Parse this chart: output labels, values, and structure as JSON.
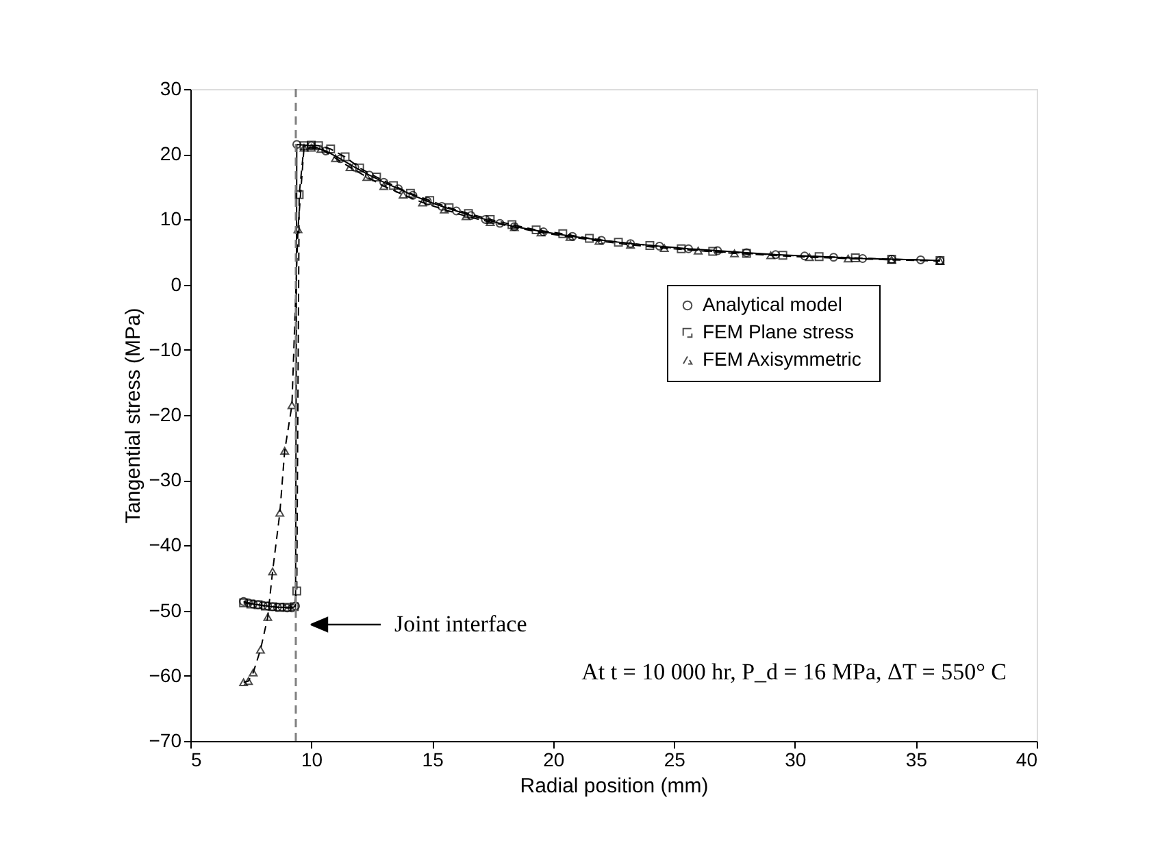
{
  "chart_data": {
    "type": "line",
    "xlabel": "Radial position (mm)",
    "ylabel": "Tangential stress (MPa)",
    "xlim": [
      5,
      40
    ],
    "xticks": [
      5,
      10,
      15,
      20,
      25,
      30,
      35,
      40
    ],
    "ylim": [
      -70,
      30
    ],
    "yticks": [
      -70,
      -60,
      -50,
      -40,
      -30,
      -20,
      -10,
      0,
      10,
      20,
      30
    ],
    "grid": false,
    "legend": "right",
    "series": [
      {
        "name": "Analytical model",
        "color": "#000000",
        "marker": "circle",
        "line_style": "solid",
        "x": [
          7.2,
          7.4,
          7.6,
          7.8,
          8.0,
          8.2,
          8.4,
          8.6,
          8.8,
          9.0,
          9.2,
          9.35,
          9.4,
          10.0,
          10.6,
          11.2,
          11.8,
          12.4,
          13.0,
          13.6,
          14.2,
          14.8,
          15.4,
          16.0,
          16.6,
          17.2,
          17.8,
          18.4,
          19.6,
          20.8,
          22.0,
          23.2,
          24.4,
          25.6,
          26.8,
          28.0,
          29.2,
          30.4,
          31.6,
          32.8,
          34.0,
          35.2,
          36.0
        ],
        "values": [
          -48.6,
          -48.8,
          -49.0,
          -49.1,
          -49.2,
          -49.3,
          -49.4,
          -49.5,
          -49.5,
          -49.6,
          -49.6,
          -49.3,
          21.5,
          21.3,
          20.5,
          19.3,
          18.0,
          16.8,
          15.7,
          14.7,
          13.7,
          12.8,
          12.0,
          11.3,
          10.6,
          10.0,
          9.4,
          8.9,
          8.1,
          7.4,
          6.8,
          6.3,
          5.9,
          5.5,
          5.2,
          4.9,
          4.6,
          4.4,
          4.2,
          4.0,
          3.9,
          3.8,
          3.7
        ]
      },
      {
        "name": "FEM  Plane stress",
        "color": "#000000",
        "marker": "square",
        "line_style": "dashed",
        "x": [
          7.2,
          7.5,
          7.8,
          8.1,
          8.4,
          8.7,
          9.0,
          9.3,
          9.4,
          9.5,
          9.7,
          10.0,
          10.3,
          10.8,
          11.4,
          12.0,
          12.7,
          13.4,
          14.1,
          14.9,
          15.7,
          16.5,
          17.4,
          18.3,
          19.3,
          20.4,
          21.5,
          22.7,
          24.0,
          25.3,
          26.6,
          28.0,
          29.5,
          31.0,
          32.5,
          34.0,
          36.0
        ],
        "values": [
          -48.8,
          -49.0,
          -49.1,
          -49.3,
          -49.4,
          -49.5,
          -49.5,
          -49.4,
          -47,
          13.8,
          21.3,
          21.4,
          21.3,
          20.8,
          19.6,
          17.9,
          16.5,
          15.2,
          14.0,
          12.9,
          11.8,
          10.9,
          10.0,
          9.2,
          8.4,
          7.8,
          7.1,
          6.5,
          6.0,
          5.5,
          5.1,
          4.8,
          4.5,
          4.3,
          4.1,
          3.9,
          3.7
        ]
      },
      {
        "name": "FEM  Axisymmetric",
        "color": "#000000",
        "marker": "triangle",
        "line_style": "dashed",
        "x": [
          7.2,
          7.4,
          7.6,
          7.9,
          8.2,
          8.4,
          8.7,
          8.9,
          9.2,
          9.45,
          9.7,
          10.0,
          10.4,
          11.0,
          11.6,
          12.3,
          13.0,
          13.8,
          14.6,
          15.5,
          16.4,
          17.4,
          18.4,
          19.5,
          20.7,
          21.9,
          23.2,
          24.6,
          26.0,
          27.5,
          29.0,
          30.6,
          32.2,
          34.0,
          36.0
        ],
        "values": [
          -61.0,
          -60.8,
          -59.5,
          -56.0,
          -51.0,
          -44.0,
          -35.0,
          -25.5,
          -18.5,
          8.5,
          21.0,
          21.0,
          20.8,
          19.4,
          18.0,
          16.5,
          15.1,
          13.8,
          12.6,
          11.5,
          10.5,
          9.6,
          8.8,
          8.0,
          7.3,
          6.7,
          6.1,
          5.6,
          5.2,
          4.8,
          4.5,
          4.2,
          4.0,
          3.8,
          3.6
        ]
      }
    ],
    "ref_lines": [
      {
        "axis": "x",
        "value": 9.36,
        "color": "#808080",
        "line_style": "dashed"
      }
    ],
    "annotations": [
      "Joint interface",
      "At t = 10 000 hr,  P_d = 16 MPa,  ΔT = 550° C"
    ]
  }
}
